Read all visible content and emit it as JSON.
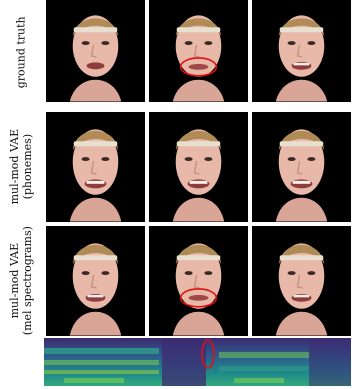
{
  "figure": {
    "rows": [
      {
        "label_lines": [
          "ground truth"
        ]
      },
      {
        "label_lines": [
          "mul-mod VAE",
          "(phonemes)"
        ]
      },
      {
        "label_lines": [
          "mul-mod VAE",
          "(mel spectrograms)"
        ]
      }
    ],
    "colors": {
      "background": "#000000",
      "skin": "#e8b9a8",
      "hair": "#b08b56",
      "highlight_ellipse": "#e01010",
      "spectrogram_dark": "#3d2b72",
      "spectrogram_mid": "#1f8c8a",
      "spectrogram_light": "#7ad151"
    }
  }
}
